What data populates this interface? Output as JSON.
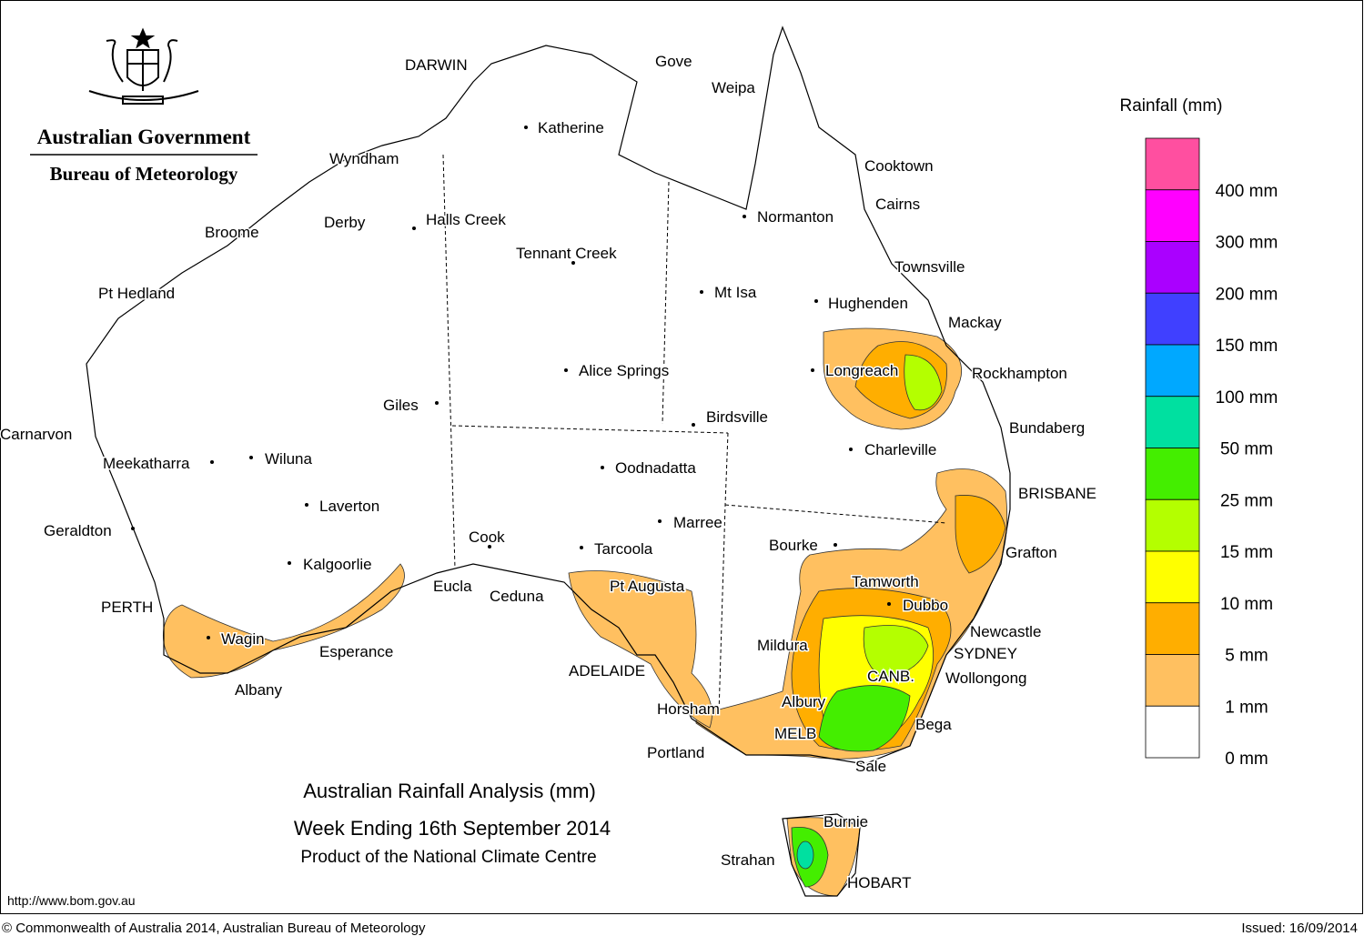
{
  "header": {
    "agency": "Australian Government",
    "bureau": "Bureau of Meteorology"
  },
  "map": {
    "cities": [
      "DARWIN",
      "Gove",
      "Weipa",
      "Katherine",
      "Wyndham",
      "Cooktown",
      "Cairns",
      "Normanton",
      "Derby",
      "Halls Creek",
      "Broome",
      "Tennant Creek",
      "Townsville",
      "Pt Hedland",
      "Mt Isa",
      "Hughenden",
      "Mackay",
      "Longreach",
      "Alice Springs",
      "Rockhampton",
      "Giles",
      "Birdsville",
      "Bundaberg",
      "Carnarvon",
      "Charleville",
      "Meekatharra",
      "Wiluna",
      "Oodnadatta",
      "BRISBANE",
      "Laverton",
      "Marree",
      "Geraldton",
      "Cook",
      "Bourke",
      "Tarcoola",
      "Grafton",
      "Kalgoorlie",
      "Tamworth",
      "Pt Augusta",
      "Eucla",
      "Ceduna",
      "Dubbo",
      "PERTH",
      "Newcastle",
      "Wagin",
      "Mildura",
      "Esperance",
      "SYDNEY",
      "ADELAIDE",
      "CANB.",
      "Wollongong",
      "Albany",
      "Albury",
      "Horsham",
      "Bega",
      "MELB",
      "Portland",
      "Sale",
      "Burnie",
      "Strahan",
      "HOBART"
    ]
  },
  "legend": {
    "title": "Rainfall (mm)",
    "items": [
      {
        "label": "400 mm",
        "color": "#ff4fa0"
      },
      {
        "label": "300 mm",
        "color": "#ff00ff"
      },
      {
        "label": "200 mm",
        "color": "#aa00ff"
      },
      {
        "label": "150 mm",
        "color": "#4040ff"
      },
      {
        "label": "100 mm",
        "color": "#00a8ff"
      },
      {
        "label": "50 mm",
        "color": "#00e0a0"
      },
      {
        "label": "25 mm",
        "color": "#44ee00"
      },
      {
        "label": "15 mm",
        "color": "#b4ff00"
      },
      {
        "label": "10 mm",
        "color": "#ffff00"
      },
      {
        "label": "5 mm",
        "color": "#ffae00"
      },
      {
        "label": "1 mm",
        "color": "#ffc060"
      },
      {
        "label": "0 mm",
        "color": "#ffffff"
      }
    ]
  },
  "title": {
    "line1": "Australian Rainfall Analysis (mm)",
    "line2": "Week Ending 16th September 2014",
    "line3": "Product of the National Climate Centre"
  },
  "footer": {
    "url": "http://www.bom.gov.au",
    "copyright": "© Commonwealth of Australia 2014, Australian Bureau of Meteorology",
    "issued": "Issued: 16/09/2014"
  }
}
